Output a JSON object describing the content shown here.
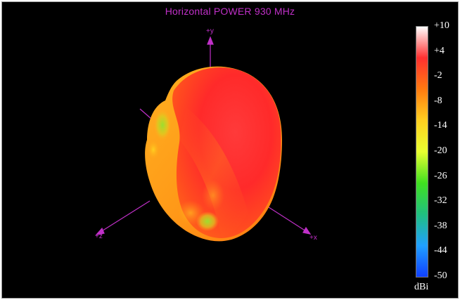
{
  "chart_data": {
    "type": "3d-radiation-pattern",
    "title": "Horizontal POWER 930  MHz",
    "axes": [
      "+y",
      "+z",
      "+x"
    ],
    "colorbar": {
      "unit": "dBi",
      "ticks": [
        "+10",
        "+4",
        "-2",
        "-8",
        "-14",
        "-20",
        "-26",
        "-32",
        "-38",
        "-44",
        "-50"
      ],
      "range": [
        -50,
        10
      ],
      "colors": [
        "#ffffff",
        "#ff3030",
        "#ff7a10",
        "#ffd020",
        "#e8ff30",
        "#40e020",
        "#20c080",
        "#20a0ff",
        "#1040ff"
      ]
    }
  }
}
